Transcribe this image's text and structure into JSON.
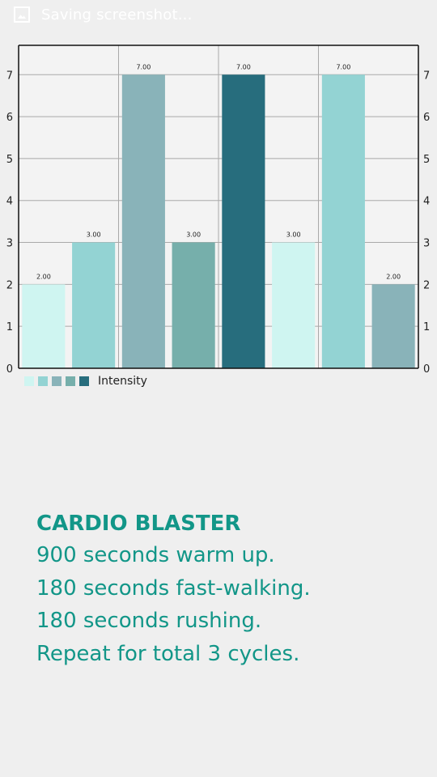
{
  "statusbar": {
    "text": "Saving screenshot..."
  },
  "chart_data": {
    "type": "bar",
    "values": [
      2,
      3,
      7,
      3,
      7,
      3,
      7,
      2
    ],
    "value_labels": [
      "2.00",
      "3.00",
      "7.00",
      "3.00",
      "7.00",
      "3.00",
      "7.00",
      "2.00"
    ],
    "colors": [
      "#cff5f1",
      "#93d3d3",
      "#89b3b9",
      "#76afab",
      "#276d7d",
      "#cff5f1",
      "#93d3d3",
      "#89b3b9"
    ],
    "ylim": [
      0,
      7.7
    ],
    "y_ticks": [
      0,
      1,
      2,
      3,
      4,
      5,
      6,
      7
    ],
    "legend": {
      "label": "Intensity",
      "colors": [
        "#cff5f1",
        "#93d3d3",
        "#89b3b9",
        "#76afab",
        "#276d7d"
      ]
    }
  },
  "workout": {
    "title": "CARDIO BLASTER",
    "lines": [
      "900 seconds warm up.",
      "180 seconds fast-walking.",
      "180 seconds rushing.",
      "Repeat for total 3 cycles."
    ]
  }
}
